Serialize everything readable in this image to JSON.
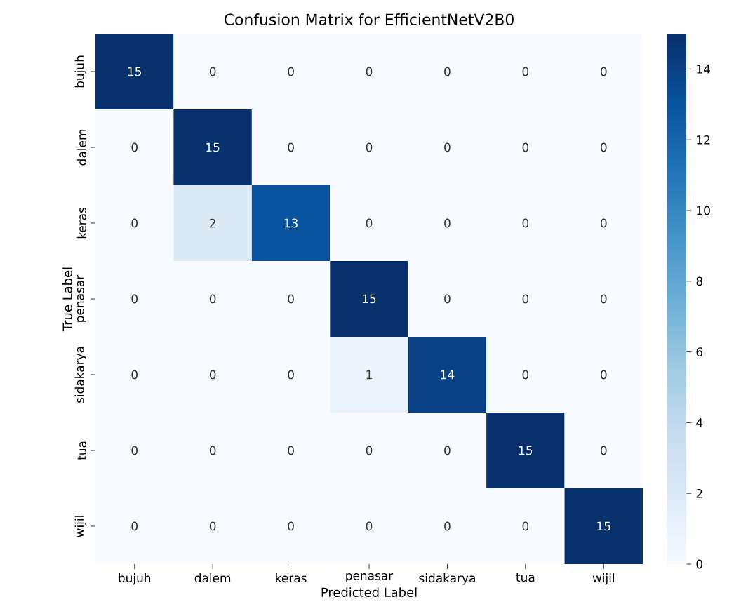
{
  "chart_data": {
    "type": "heatmap",
    "title": "Confusion Matrix for EfficientNetV2B0",
    "xlabel": "Predicted Label",
    "ylabel": "True Label",
    "categories": [
      "bujuh",
      "dalem",
      "keras",
      "penasar",
      "sidakarya",
      "tua",
      "wijil"
    ],
    "y_categories": [
      "bujuh",
      "dalem",
      "keras",
      "penasar",
      "sidakarya",
      "tua",
      "wijil"
    ],
    "cells": [
      [
        15,
        0,
        0,
        0,
        0,
        0,
        0
      ],
      [
        0,
        15,
        0,
        0,
        0,
        0,
        0
      ],
      [
        0,
        2,
        13,
        0,
        0,
        0,
        0
      ],
      [
        0,
        0,
        0,
        15,
        0,
        0,
        0
      ],
      [
        0,
        0,
        0,
        1,
        14,
        0,
        0
      ],
      [
        0,
        0,
        0,
        0,
        0,
        15,
        0
      ],
      [
        0,
        0,
        0,
        0,
        0,
        0,
        15
      ]
    ],
    "clim": [
      0,
      15
    ],
    "cticks": [
      0,
      2,
      4,
      6,
      8,
      10,
      12,
      14
    ],
    "data_labels": true,
    "grid": false
  }
}
